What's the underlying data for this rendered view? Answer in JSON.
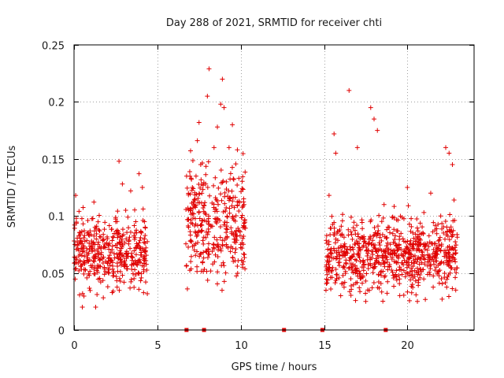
{
  "chart_data": {
    "type": "scatter",
    "title": "Day 288 of 2021, SRMTID for receiver chti",
    "xlabel": "GPS time / hours",
    "ylabel": "SRMTID / TECUs",
    "xlim": [
      0,
      24
    ],
    "ylim": [
      0,
      0.25
    ],
    "x_ticks": [
      0,
      5,
      10,
      15,
      20
    ],
    "x_tick_labels": [
      "0",
      "5",
      "10",
      "15",
      "20"
    ],
    "y_ticks": [
      0,
      0.05,
      0.1,
      0.15,
      0.2,
      0.25
    ],
    "y_tick_labels": [
      "0",
      "0.05",
      "0.1",
      "0.15",
      "0.2",
      "0.25"
    ],
    "grid": true,
    "marker": "+",
    "color": "#e00000",
    "zero_markers": [
      6.75,
      7.8,
      12.6,
      14.9,
      18.7
    ],
    "series": [
      {
        "name": "SRMTID",
        "clusters": [
          {
            "x_range": [
              0.0,
              4.4
            ],
            "median": 0.068,
            "spread": 0.018
          },
          {
            "x_range": [
              6.7,
              10.3
            ],
            "median": 0.092,
            "spread": 0.03
          },
          {
            "x_range": [
              15.1,
              23.0
            ],
            "median": 0.067,
            "spread": 0.019
          }
        ],
        "points": [
          [
            0.1,
            0.118
          ],
          [
            0.3,
            0.104
          ],
          [
            0.5,
            0.02
          ],
          [
            0.8,
            0.085
          ],
          [
            1.3,
            0.02
          ],
          [
            1.6,
            0.042
          ],
          [
            2.0,
            0.08
          ],
          [
            2.5,
            0.095
          ],
          [
            2.7,
            0.148
          ],
          [
            2.9,
            0.128
          ],
          [
            3.1,
            0.105
          ],
          [
            3.4,
            0.122
          ],
          [
            3.6,
            0.045
          ],
          [
            3.9,
            0.137
          ],
          [
            4.1,
            0.125
          ],
          [
            4.3,
            0.042
          ],
          [
            6.8,
            0.036
          ],
          [
            7.0,
            0.06
          ],
          [
            7.2,
            0.11
          ],
          [
            7.4,
            0.166
          ],
          [
            7.5,
            0.182
          ],
          [
            7.6,
            0.145
          ],
          [
            7.9,
            0.128
          ],
          [
            8.0,
            0.205
          ],
          [
            8.1,
            0.229
          ],
          [
            8.4,
            0.16
          ],
          [
            8.6,
            0.178
          ],
          [
            8.8,
            0.198
          ],
          [
            8.9,
            0.22
          ],
          [
            9.0,
            0.195
          ],
          [
            9.1,
            0.05
          ],
          [
            9.3,
            0.16
          ],
          [
            9.5,
            0.18
          ],
          [
            9.8,
            0.158
          ],
          [
            10.0,
            0.075
          ],
          [
            10.2,
            0.11
          ],
          [
            15.3,
            0.118
          ],
          [
            15.6,
            0.172
          ],
          [
            15.7,
            0.155
          ],
          [
            16.0,
            0.03
          ],
          [
            16.5,
            0.21
          ],
          [
            17.0,
            0.16
          ],
          [
            17.5,
            0.025
          ],
          [
            17.8,
            0.195
          ],
          [
            18.0,
            0.185
          ],
          [
            18.2,
            0.175
          ],
          [
            18.6,
            0.11
          ],
          [
            19.5,
            0.075
          ],
          [
            20.0,
            0.125
          ],
          [
            20.3,
            0.04
          ],
          [
            20.6,
            0.025
          ],
          [
            21.0,
            0.065
          ],
          [
            21.4,
            0.12
          ],
          [
            22.0,
            0.1
          ],
          [
            22.3,
            0.16
          ],
          [
            22.5,
            0.155
          ],
          [
            22.7,
            0.145
          ],
          [
            22.9,
            0.035
          ]
        ]
      }
    ]
  }
}
